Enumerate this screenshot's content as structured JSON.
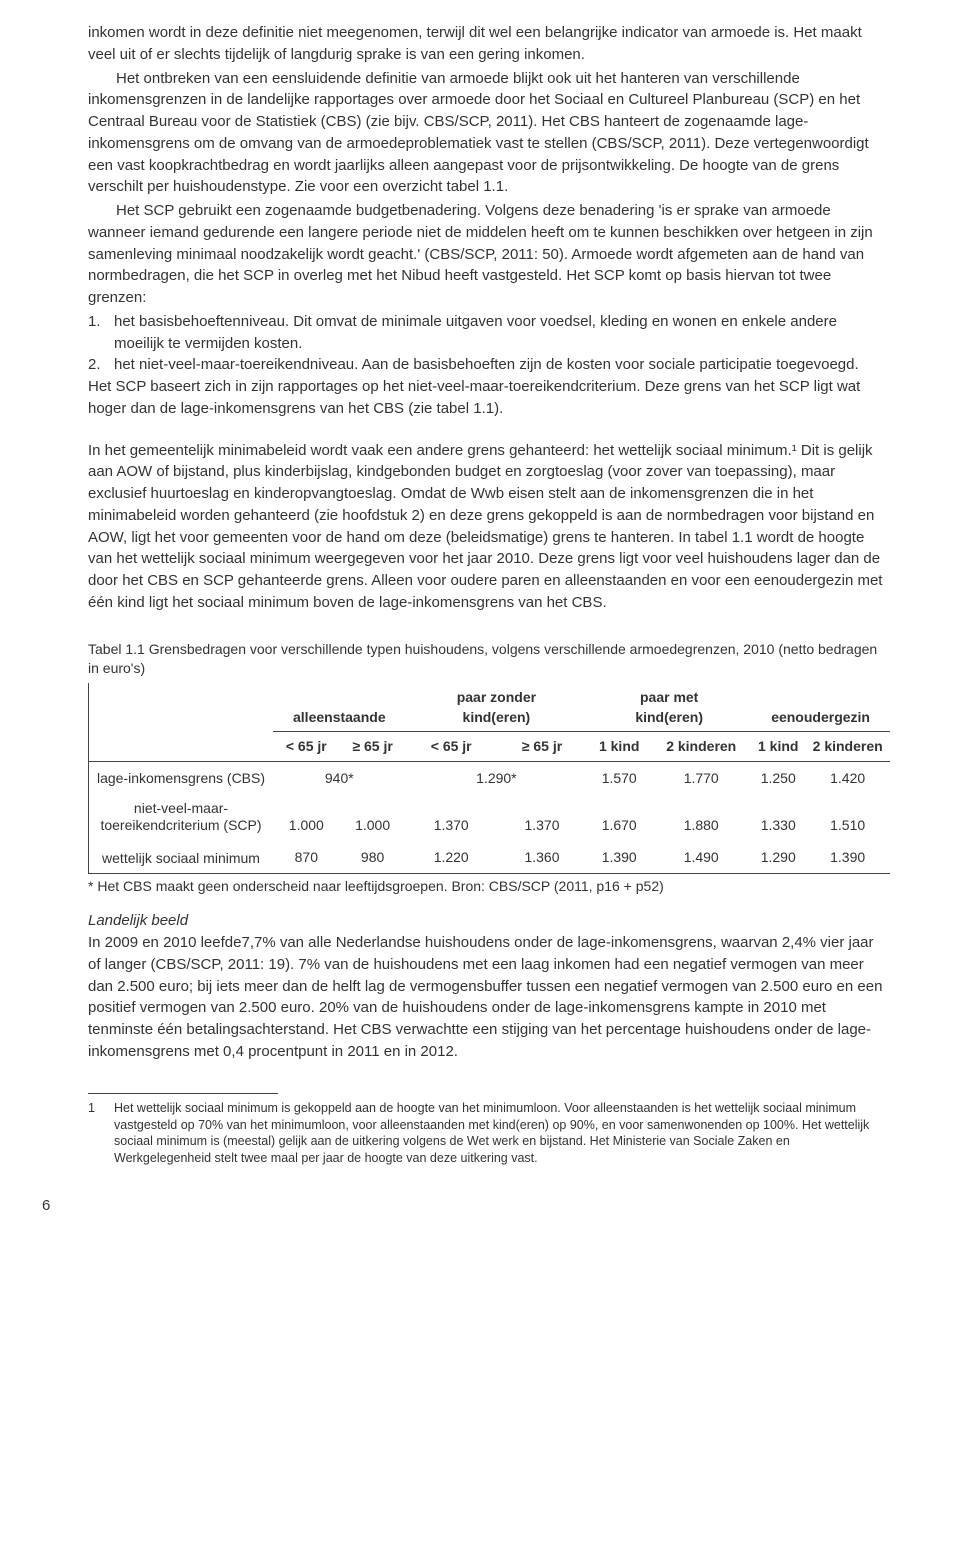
{
  "body": {
    "p1a": "inkomen wordt in deze definitie niet meegenomen, terwijl dit wel een belangrijke indicator van armoede is. Het maakt veel uit of er slechts tijdelijk of langdurig sprake is van een gering inkomen.",
    "p1b": "Het ontbreken van een eensluidende definitie van armoede blijkt ook uit het hanteren van verschillende inkomensgrenzen in de landelijke rapportages over armoede door het Sociaal en Cultureel Planbureau (SCP) en het Centraal Bureau voor de Statistiek (CBS) (zie bijv. CBS/SCP, 2011). Het CBS hanteert de zogenaamde lage-inkomensgrens om de omvang van de armoedeproblematiek vast te stellen (CBS/SCP, 2011). Deze vertegenwoordigt een vast koopkrachtbedrag en wordt jaarlijks alleen aangepast voor de prijsontwikkeling. De hoogte van de grens verschilt per huishoudenstype. Zie voor een overzicht tabel 1.1.",
    "p1c": "Het SCP gebruikt een zogenaamde budgetbenadering. Volgens deze benadering 'is er sprake van armoede wanneer iemand gedurende een langere periode niet de middelen heeft om te kunnen beschikken over hetgeen in zijn samenleving minimaal noodzakelijk wordt geacht.' (CBS/SCP, 2011: 50). Armoede wordt afgemeten aan de hand van normbedragen, die het SCP in overleg met het Nibud heeft vastgesteld. Het SCP komt op basis hiervan tot twee grenzen:",
    "li1_num": "1.",
    "li1": "het basisbehoeftenniveau. Dit omvat de minimale uitgaven voor voedsel, kleding en wonen en enkele andere moeilijk te vermijden kosten.",
    "li2_num": "2.",
    "li2": "het niet-veel-maar-toereikendniveau. Aan de basisbehoeften zijn de kosten voor sociale participatie toegevoegd.",
    "p1d": "Het SCP baseert zich in zijn rapportages op het niet-veel-maar-toereikendcriterium. Deze grens van het SCP ligt wat hoger dan de lage-inkomensgrens van het CBS (zie tabel 1.1).",
    "p2": "In het gemeentelijk minimabeleid wordt vaak een andere grens gehanteerd: het wettelijk sociaal minimum.¹ Dit is gelijk aan AOW of bijstand, plus kinderbijslag, kindgebonden budget en zorgtoeslag (voor zover van toepassing), maar exclusief huurtoeslag en kinderopvangtoeslag. Omdat de Wwb eisen stelt aan de inkomensgrenzen die in het minimabeleid worden gehanteerd (zie hoofdstuk 2) en deze grens gekoppeld is aan de normbedragen voor bijstand en AOW, ligt het voor gemeenten voor de hand om deze (beleidsmatige) grens te hanteren. In tabel 1.1 wordt de hoogte van het wettelijk sociaal minimum weergegeven voor het jaar 2010. Deze grens ligt voor veel huishoudens lager dan de door het CBS en SCP gehanteerde grens. Alleen voor oudere paren en alleenstaanden en voor een eenoudergezin met één kind ligt het sociaal minimum boven de lage-inkomensgrens van het CBS."
  },
  "table": {
    "title": "Tabel 1.1 Grensbedragen voor verschillende typen huishoudens, volgens verschillende armoedegrenzen, 2010 (netto bedragen in euro's)",
    "col_group": {
      "a": "alleenstaande",
      "b": "paar zonder kind(eren)",
      "c": "paar met kind(eren)",
      "d": "eenoudergezin"
    },
    "sub": {
      "lt65a": "< 65 jr",
      "ge65a": "≥ 65 jr",
      "lt65b": "< 65 jr",
      "ge65b": "≥ 65 jr",
      "k1a": "1 kind",
      "k2a": "2 kinderen",
      "k1b": "1 kind",
      "k2b": "2 kinderen"
    },
    "rows": [
      {
        "label": "lage-inkomensgrens (CBS)",
        "c1": "940*",
        "c2": "",
        "c3": "1.290*",
        "c4": "",
        "c5": "1.570",
        "c6": "1.770",
        "c7": "1.250",
        "c8": "1.420"
      },
      {
        "label": "niet-veel-maar-toereikendcriterium (SCP)",
        "c1": "1.000",
        "c2": "1.000",
        "c3": "1.370",
        "c4": "1.370",
        "c5": "1.670",
        "c6": "1.880",
        "c7": "1.330",
        "c8": "1.510"
      },
      {
        "label": "wettelijk sociaal minimum",
        "c1": "870",
        "c2": "980",
        "c3": "1.220",
        "c4": "1.360",
        "c5": "1.390",
        "c6": "1.490",
        "c7": "1.290",
        "c8": "1.390"
      }
    ],
    "footnote": "* Het CBS maakt geen onderscheid naar leeftijdsgroepen. Bron: CBS/SCP (2011, p16 + p52)"
  },
  "landelijk": {
    "head": "Landelijk beeld",
    "p": "In 2009 en 2010 leefde7,7% van alle Nederlandse huishoudens onder de lage-inkomensgrens, waarvan 2,4% vier jaar of langer (CBS/SCP, 2011: 19). 7% van de huishoudens met een laag inkomen had een negatief vermogen van meer dan 2.500 euro; bij iets meer dan de helft lag de vermogensbuffer tussen een negatief vermogen van 2.500 euro en een positief vermogen van 2.500 euro. 20% van de huishoudens onder de lage-inkomensgrens kampte in 2010 met tenminste één betalingsachterstand. Het CBS verwachtte een stijging van het percentage huishoudens onder de lage-inkomensgrens met 0,4 procentpunt in 2011 en in 2012."
  },
  "endnote": {
    "num": "1",
    "text": "Het wettelijk sociaal minimum is gekoppeld aan de hoogte van het minimumloon. Voor alleenstaanden is het wettelijk sociaal minimum vastgesteld op 70% van het minimumloon, voor alleenstaanden met kind(eren) op 90%, en voor samenwonenden op 100%. Het wettelijk sociaal minimum is (meestal) gelijk aan de uitkering volgens de Wet werk en bijstand. Het Ministerie van Sociale Zaken en Werkgelegenheid stelt twee maal per jaar de hoogte van deze uitkering vast."
  },
  "pagenum": "6"
}
